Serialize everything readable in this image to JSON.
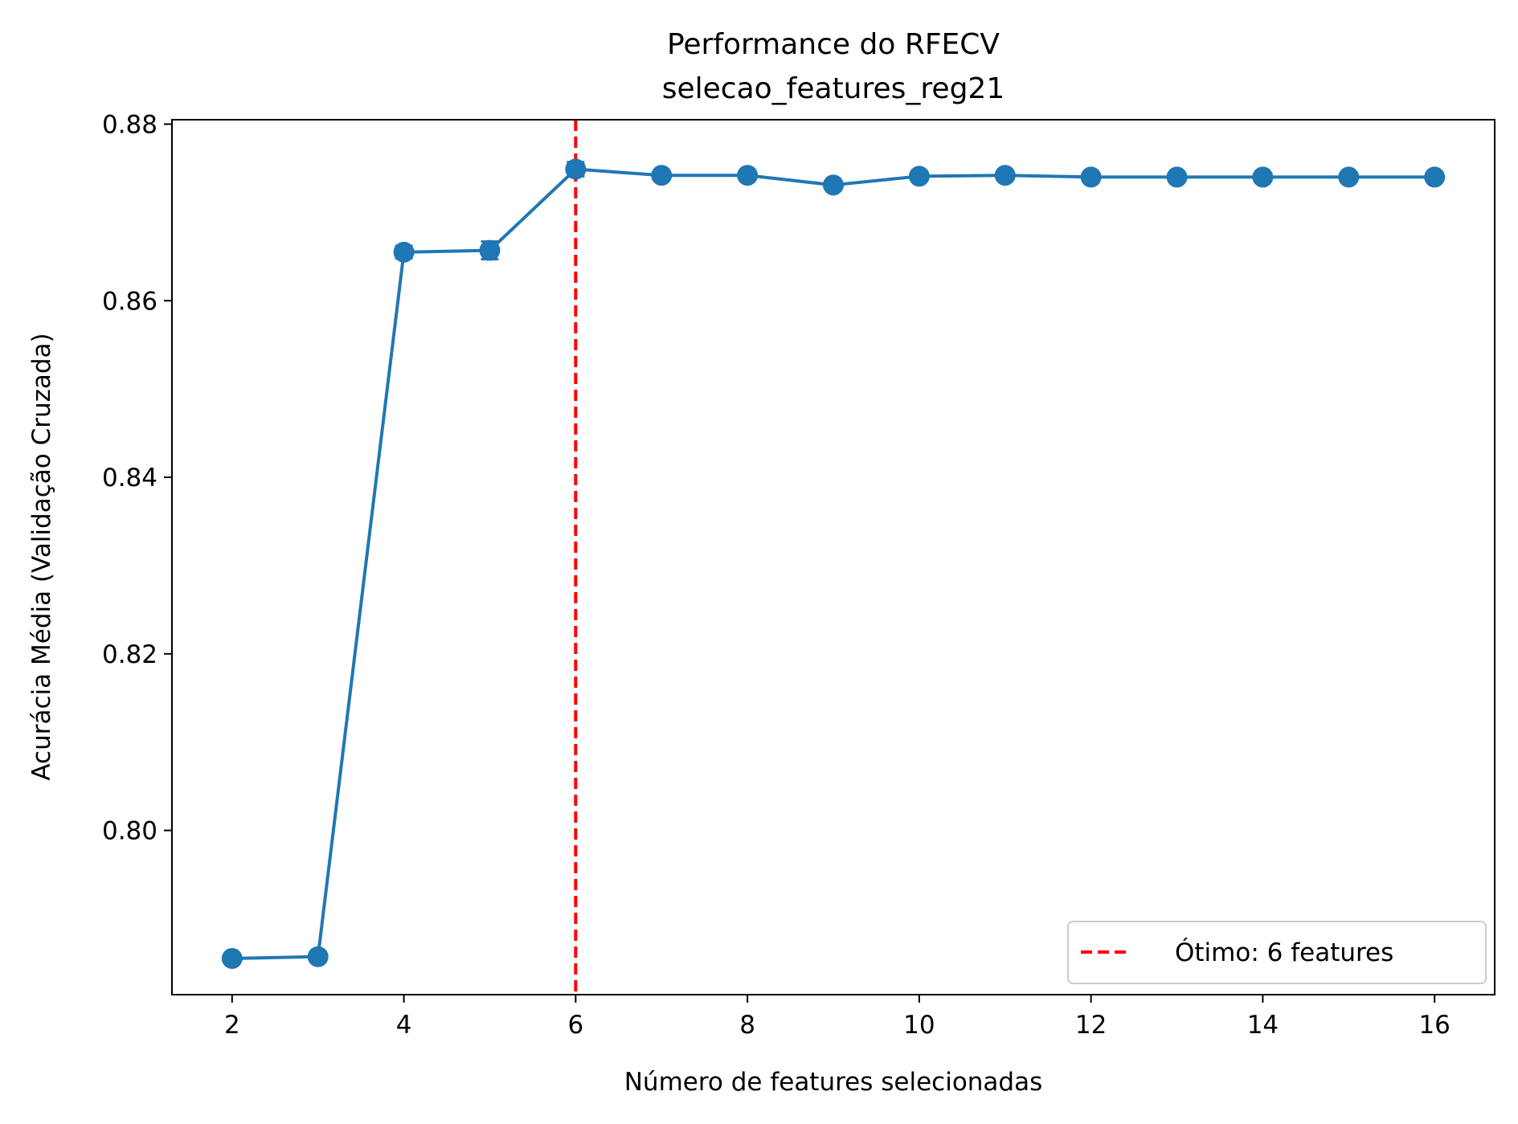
{
  "chart_data": {
    "type": "line",
    "title": "Performance do RFECV",
    "subtitle": "selecao_features_reg21",
    "xlabel": "Número de features selecionadas",
    "ylabel": "Acurácia Média (Validação Cruzada)",
    "xlim": [
      1.3,
      16.7
    ],
    "ylim": [
      0.7814,
      0.8805
    ],
    "xticks": [
      2,
      4,
      6,
      8,
      10,
      12,
      14,
      16
    ],
    "yticks": [
      0.8,
      0.82,
      0.84,
      0.86,
      0.88
    ],
    "xtick_labels": [
      "2",
      "4",
      "6",
      "8",
      "10",
      "12",
      "14",
      "16"
    ],
    "ytick_labels": [
      "0.80",
      "0.82",
      "0.84",
      "0.86",
      "0.88"
    ],
    "grid": false,
    "series": [
      {
        "color": "#1f77b4",
        "marker": "circle",
        "x": [
          2,
          3,
          4,
          5,
          6,
          7,
          8,
          9,
          10,
          11,
          12,
          13,
          14,
          15,
          16
        ],
        "y": [
          0.7855,
          0.7857,
          0.8655,
          0.8657,
          0.8749,
          0.8742,
          0.8742,
          0.8731,
          0.8741,
          0.8742,
          0.874,
          0.874,
          0.874,
          0.874,
          0.874
        ],
        "error": [
          0.0002,
          0.0002,
          0.0007,
          0.001,
          0.0008,
          0.0004,
          0.0004,
          0.0003,
          0.0003,
          0.0003,
          0.0003,
          0.0003,
          0.0003,
          0.0003,
          0.0003
        ]
      }
    ],
    "optimum_line": {
      "x": 6,
      "color": "#ff0000",
      "style": "dashed",
      "label": "Ótimo: 6 features"
    },
    "legend_position": "lower-right"
  }
}
